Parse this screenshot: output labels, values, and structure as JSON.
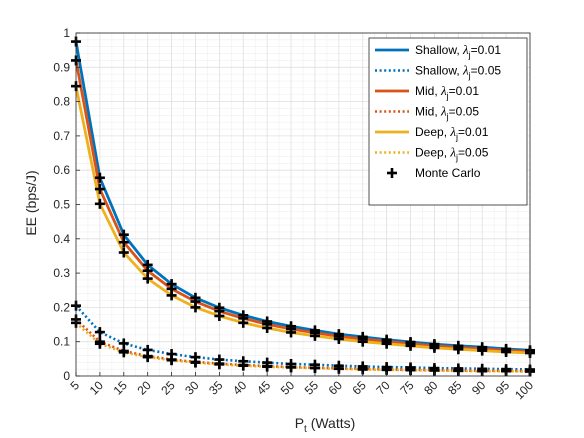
{
  "chart_data": {
    "type": "line",
    "xlabel": "P",
    "xlabel_sub": "t",
    "xlabel_unit": " (Watts)",
    "ylabel": "EE (bps/J)",
    "x": [
      5,
      10,
      15,
      20,
      25,
      30,
      35,
      40,
      45,
      50,
      55,
      60,
      65,
      70,
      75,
      80,
      85,
      90,
      95,
      100
    ],
    "xlim": [
      5,
      100
    ],
    "ylim": [
      0,
      1
    ],
    "yticks": [
      0,
      0.1,
      0.2,
      0.3,
      0.4,
      0.5,
      0.6,
      0.7,
      0.8,
      0.9,
      1
    ],
    "ytick_labels": [
      "0",
      "0.1",
      "0.2",
      "0.3",
      "0.4",
      "0.5",
      "0.6",
      "0.7",
      "0.8",
      "0.9",
      "1"
    ],
    "xtick_labels": [
      "5",
      "10",
      "15",
      "20",
      "25",
      "30",
      "35",
      "40",
      "45",
      "50",
      "55",
      "60",
      "65",
      "70",
      "75",
      "80",
      "85",
      "90",
      "95",
      "100"
    ],
    "grid": true,
    "legend_position": "top-right",
    "series": [
      {
        "name": "Shallow, λj=0.01",
        "label_main": "Shallow, ",
        "color": "#0072BD",
        "style": "solid",
        "values": [
          0.975,
          0.578,
          0.412,
          0.324,
          0.268,
          0.228,
          0.199,
          0.177,
          0.159,
          0.145,
          0.133,
          0.122,
          0.114,
          0.106,
          0.099,
          0.093,
          0.088,
          0.084,
          0.079,
          0.075
        ]
      },
      {
        "name": "Shallow, λj=0.05",
        "label_main": "Shallow, ",
        "color": "#0072BD",
        "style": "dotted",
        "values": [
          0.205,
          0.128,
          0.095,
          0.076,
          0.064,
          0.055,
          0.048,
          0.043,
          0.039,
          0.035,
          0.033,
          0.03,
          0.028,
          0.026,
          0.025,
          0.023,
          0.022,
          0.021,
          0.02,
          0.019
        ]
      },
      {
        "name": "Mid, λj=0.01",
        "label_main": "Mid, ",
        "color": "#D95319",
        "style": "solid",
        "values": [
          0.92,
          0.545,
          0.39,
          0.307,
          0.254,
          0.217,
          0.189,
          0.168,
          0.151,
          0.137,
          0.126,
          0.116,
          0.108,
          0.101,
          0.094,
          0.088,
          0.083,
          0.079,
          0.075,
          0.071
        ]
      },
      {
        "name": "Mid, λj=0.05",
        "label_main": "Mid, ",
        "color": "#D95319",
        "style": "dotted",
        "values": [
          0.165,
          0.1,
          0.073,
          0.058,
          0.048,
          0.041,
          0.036,
          0.032,
          0.029,
          0.026,
          0.024,
          0.022,
          0.021,
          0.019,
          0.018,
          0.017,
          0.016,
          0.015,
          0.015,
          0.014
        ]
      },
      {
        "name": "Deep, λj=0.01",
        "label_main": "Deep, ",
        "color": "#EDB120",
        "style": "solid",
        "values": [
          0.845,
          0.502,
          0.36,
          0.284,
          0.235,
          0.2,
          0.175,
          0.155,
          0.14,
          0.127,
          0.117,
          0.108,
          0.1,
          0.094,
          0.088,
          0.082,
          0.078,
          0.074,
          0.07,
          0.067
        ]
      },
      {
        "name": "Deep, λj=0.05",
        "label_main": "Deep, ",
        "color": "#EDB120",
        "style": "dotted",
        "values": [
          0.155,
          0.094,
          0.069,
          0.055,
          0.046,
          0.039,
          0.034,
          0.03,
          0.027,
          0.025,
          0.023,
          0.021,
          0.019,
          0.018,
          0.017,
          0.016,
          0.015,
          0.014,
          0.014,
          0.013
        ]
      }
    ],
    "monte_carlo": {
      "name": "Monte Carlo",
      "color": "#000000",
      "marker": "plus"
    },
    "legend_lambda": "λ",
    "legend_sub": "j",
    "legend_eq_001": "=0.01",
    "legend_eq_005": "=0.05"
  }
}
